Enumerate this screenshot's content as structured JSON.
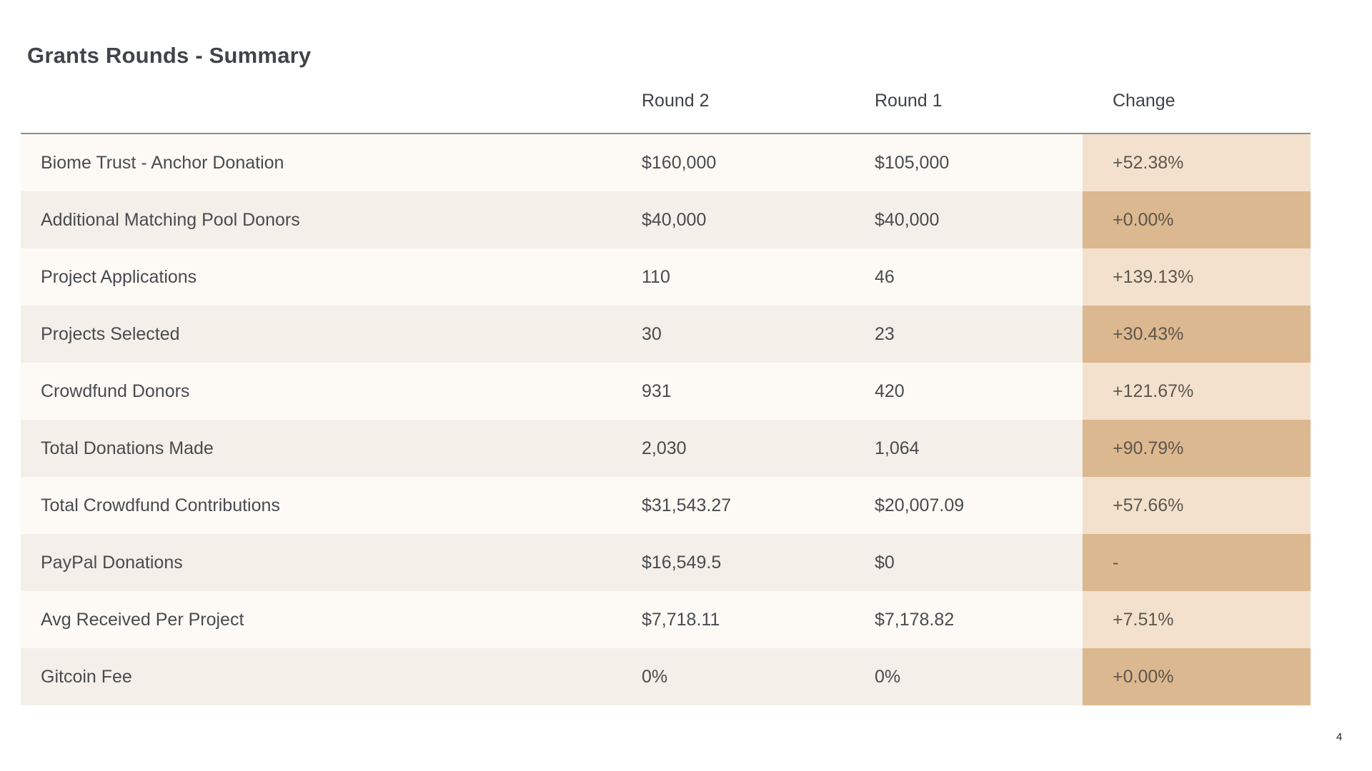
{
  "page": {
    "title": "Grants Rounds - Summary",
    "page_number": "4"
  },
  "table": {
    "columns": [
      "",
      "Round 2",
      "Round 1",
      "Change"
    ],
    "rows": [
      {
        "label": "Biome Trust - Anchor Donation",
        "round2": "$160,000",
        "round1": "$105,000",
        "change": "+52.38%"
      },
      {
        "label": "Additional Matching Pool Donors",
        "round2": "$40,000",
        "round1": "$40,000",
        "change": "+0.00%"
      },
      {
        "label": "Project Applications",
        "round2": "110",
        "round1": "46",
        "change": "+139.13%"
      },
      {
        "label": "Projects Selected",
        "round2": "30",
        "round1": "23",
        "change": "+30.43%"
      },
      {
        "label": "Crowdfund Donors",
        "round2": "931",
        "round1": "420",
        "change": "+121.67%"
      },
      {
        "label": "Total Donations Made",
        "round2": "2,030",
        "round1": "1,064",
        "change": "+90.79%"
      },
      {
        "label": "Total Crowdfund Contributions",
        "round2": "$31,543.27",
        "round1": "$20,007.09",
        "change": "+57.66%"
      },
      {
        "label": "PayPal Donations",
        "round2": "$16,549.5",
        "round1": "$0",
        "change": "-"
      },
      {
        "label": "Avg Received Per Project",
        "round2": "$7,718.11",
        "round1": "$7,178.82",
        "change": "+7.51%"
      },
      {
        "label": "Gitcoin Fee",
        "round2": "0%",
        "round1": "0%",
        "change": "+0.00%"
      }
    ]
  },
  "colors": {
    "row-light": "#fdfaf6",
    "row-beige": "#f4efe9",
    "tan-light": "#f3e1cd",
    "tan-dark": "#dcb890",
    "line": "#8f8c88",
    "header-text": "#3f4246",
    "cell-text": "#494b4e",
    "change-text": "#5d564c",
    "title-text": "#414448",
    "page-number-text": "#1f1f1f"
  }
}
